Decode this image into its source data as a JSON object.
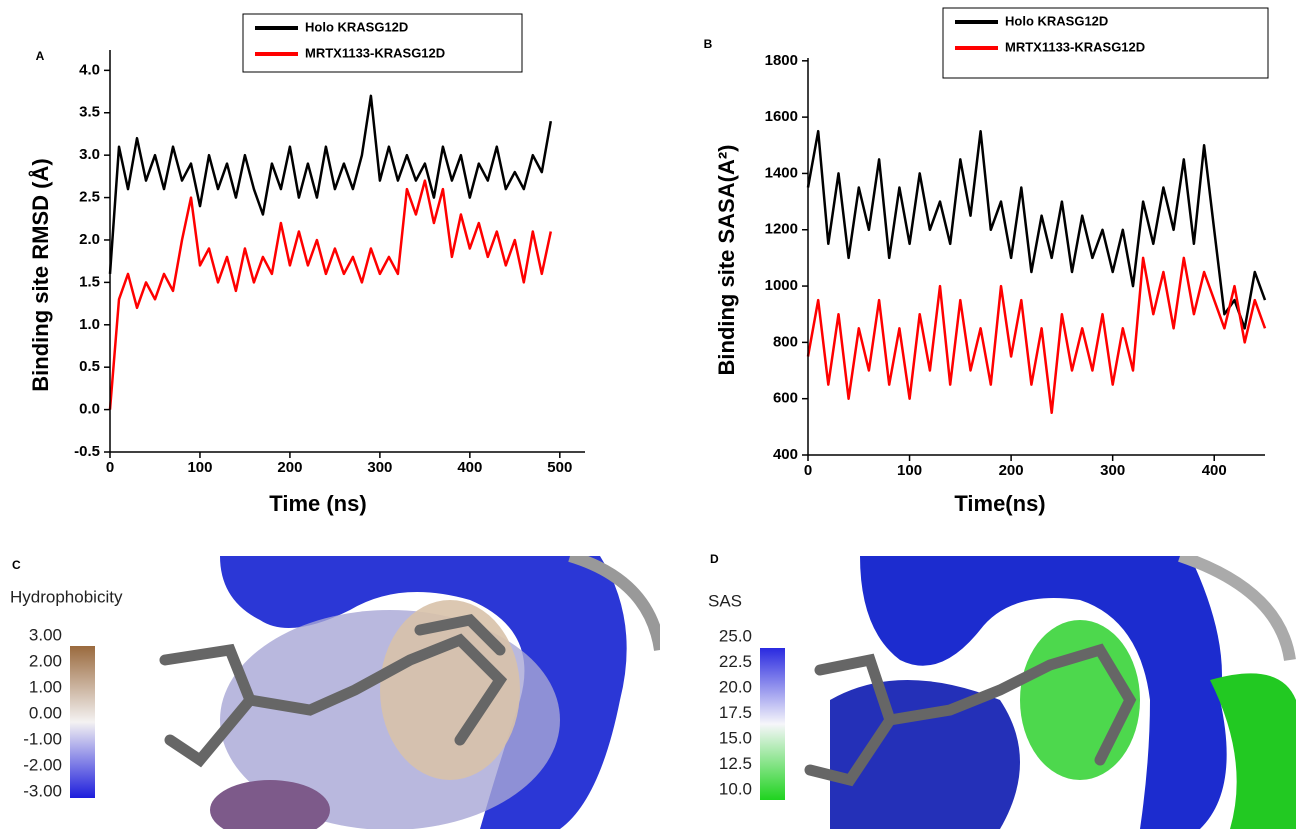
{
  "chart_data": [
    {
      "type": "line",
      "panel_label": "A",
      "x_label": "Time (ns)",
      "y_label": "Binding site RMSD (Å)",
      "x": [
        0,
        10,
        20,
        30,
        40,
        50,
        60,
        70,
        80,
        90,
        100,
        110,
        120,
        130,
        140,
        150,
        160,
        170,
        180,
        190,
        200,
        210,
        220,
        230,
        240,
        250,
        260,
        270,
        280,
        290,
        300,
        310,
        320,
        330,
        340,
        350,
        360,
        370,
        380,
        390,
        400,
        410,
        420,
        430,
        440,
        450,
        460,
        470,
        480,
        490
      ],
      "series": [
        {
          "name": "Holo KRASG12D",
          "color": "#000000",
          "values": [
            1.6,
            3.1,
            2.6,
            3.2,
            2.7,
            3.0,
            2.6,
            3.1,
            2.7,
            2.9,
            2.4,
            3.0,
            2.6,
            2.9,
            2.5,
            3.0,
            2.6,
            2.3,
            2.9,
            2.6,
            3.1,
            2.5,
            2.9,
            2.5,
            3.1,
            2.6,
            2.9,
            2.6,
            3.0,
            3.7,
            2.7,
            3.1,
            2.7,
            3.0,
            2.7,
            2.9,
            2.5,
            3.1,
            2.7,
            3.0,
            2.5,
            2.9,
            2.7,
            3.1,
            2.6,
            2.8,
            2.6,
            3.0,
            2.8,
            3.4
          ]
        },
        {
          "name": "MRTX1133-KRASG12D",
          "color": "#ff0000",
          "values": [
            0.0,
            1.3,
            1.6,
            1.2,
            1.5,
            1.3,
            1.6,
            1.4,
            2.0,
            2.5,
            1.7,
            1.9,
            1.5,
            1.8,
            1.4,
            1.9,
            1.5,
            1.8,
            1.6,
            2.2,
            1.7,
            2.1,
            1.7,
            2.0,
            1.6,
            1.9,
            1.6,
            1.8,
            1.5,
            1.9,
            1.6,
            1.8,
            1.6,
            2.6,
            2.3,
            2.7,
            2.2,
            2.6,
            1.8,
            2.3,
            1.9,
            2.2,
            1.8,
            2.1,
            1.7,
            2.0,
            1.5,
            2.1,
            1.6,
            2.1
          ]
        }
      ],
      "xlim": [
        0,
        528
      ],
      "xticks": [
        0,
        100,
        200,
        300,
        400,
        500
      ],
      "ylim": [
        -0.5,
        4.24
      ],
      "yticks": [
        -0.5,
        {
          "value": 0,
          "label": "0.0"
        },
        0.5,
        {
          "value": 1,
          "label": "1.0"
        },
        1.5,
        {
          "value": 2,
          "label": "2.0"
        },
        2.5,
        {
          "value": 3,
          "label": "3.0"
        },
        3.5,
        {
          "value": 4,
          "label": "4.0"
        }
      ]
    },
    {
      "type": "line",
      "panel_label": "B",
      "x_label": "Time(ns)",
      "y_label": "Binding site SASA(A²)",
      "x": [
        0,
        10,
        20,
        30,
        40,
        50,
        60,
        70,
        80,
        90,
        100,
        110,
        120,
        130,
        140,
        150,
        160,
        170,
        180,
        190,
        200,
        210,
        220,
        230,
        240,
        250,
        260,
        270,
        280,
        290,
        300,
        310,
        320,
        330,
        340,
        350,
        360,
        370,
        380,
        390,
        400,
        410,
        420,
        430,
        440,
        450
      ],
      "series": [
        {
          "name": "Holo KRASG12D",
          "color": "#000000",
          "values": [
            1350,
            1550,
            1150,
            1400,
            1100,
            1350,
            1200,
            1450,
            1100,
            1350,
            1150,
            1400,
            1200,
            1300,
            1150,
            1450,
            1250,
            1550,
            1200,
            1300,
            1100,
            1350,
            1050,
            1250,
            1100,
            1300,
            1050,
            1250,
            1100,
            1200,
            1050,
            1200,
            1000,
            1300,
            1150,
            1350,
            1200,
            1450,
            1150,
            1500,
            1200,
            900,
            950,
            850,
            1050,
            950
          ]
        },
        {
          "name": "MRTX1133-KRASG12D",
          "color": "#ff0000",
          "values": [
            750,
            950,
            650,
            900,
            600,
            850,
            700,
            950,
            650,
            850,
            600,
            900,
            700,
            1000,
            650,
            950,
            700,
            850,
            650,
            1000,
            750,
            950,
            650,
            850,
            550,
            900,
            700,
            850,
            700,
            900,
            650,
            850,
            700,
            1100,
            900,
            1050,
            850,
            1100,
            900,
            1050,
            950,
            850,
            1000,
            800,
            950,
            850
          ]
        }
      ],
      "xlim": [
        0,
        450
      ],
      "xticks": [
        0,
        100,
        200,
        300,
        400
      ],
      "ylim": [
        400,
        1810
      ],
      "yticks": [
        400,
        600,
        800,
        1000,
        1200,
        1400,
        1600,
        1800
      ]
    }
  ],
  "panels": [
    {
      "label": "C",
      "colorbar_title": "Hydrophobicity",
      "colorbar_ticks": [
        "3.00",
        "2.00",
        "1.00",
        "0.00",
        "-1.00",
        "-2.00",
        "-3.00"
      ]
    },
    {
      "label": "D",
      "colorbar_title": "SAS",
      "colorbar_ticks": [
        "25.0",
        "22.5",
        "20.0",
        "17.5",
        "15.0",
        "12.5",
        "10.0"
      ]
    }
  ]
}
